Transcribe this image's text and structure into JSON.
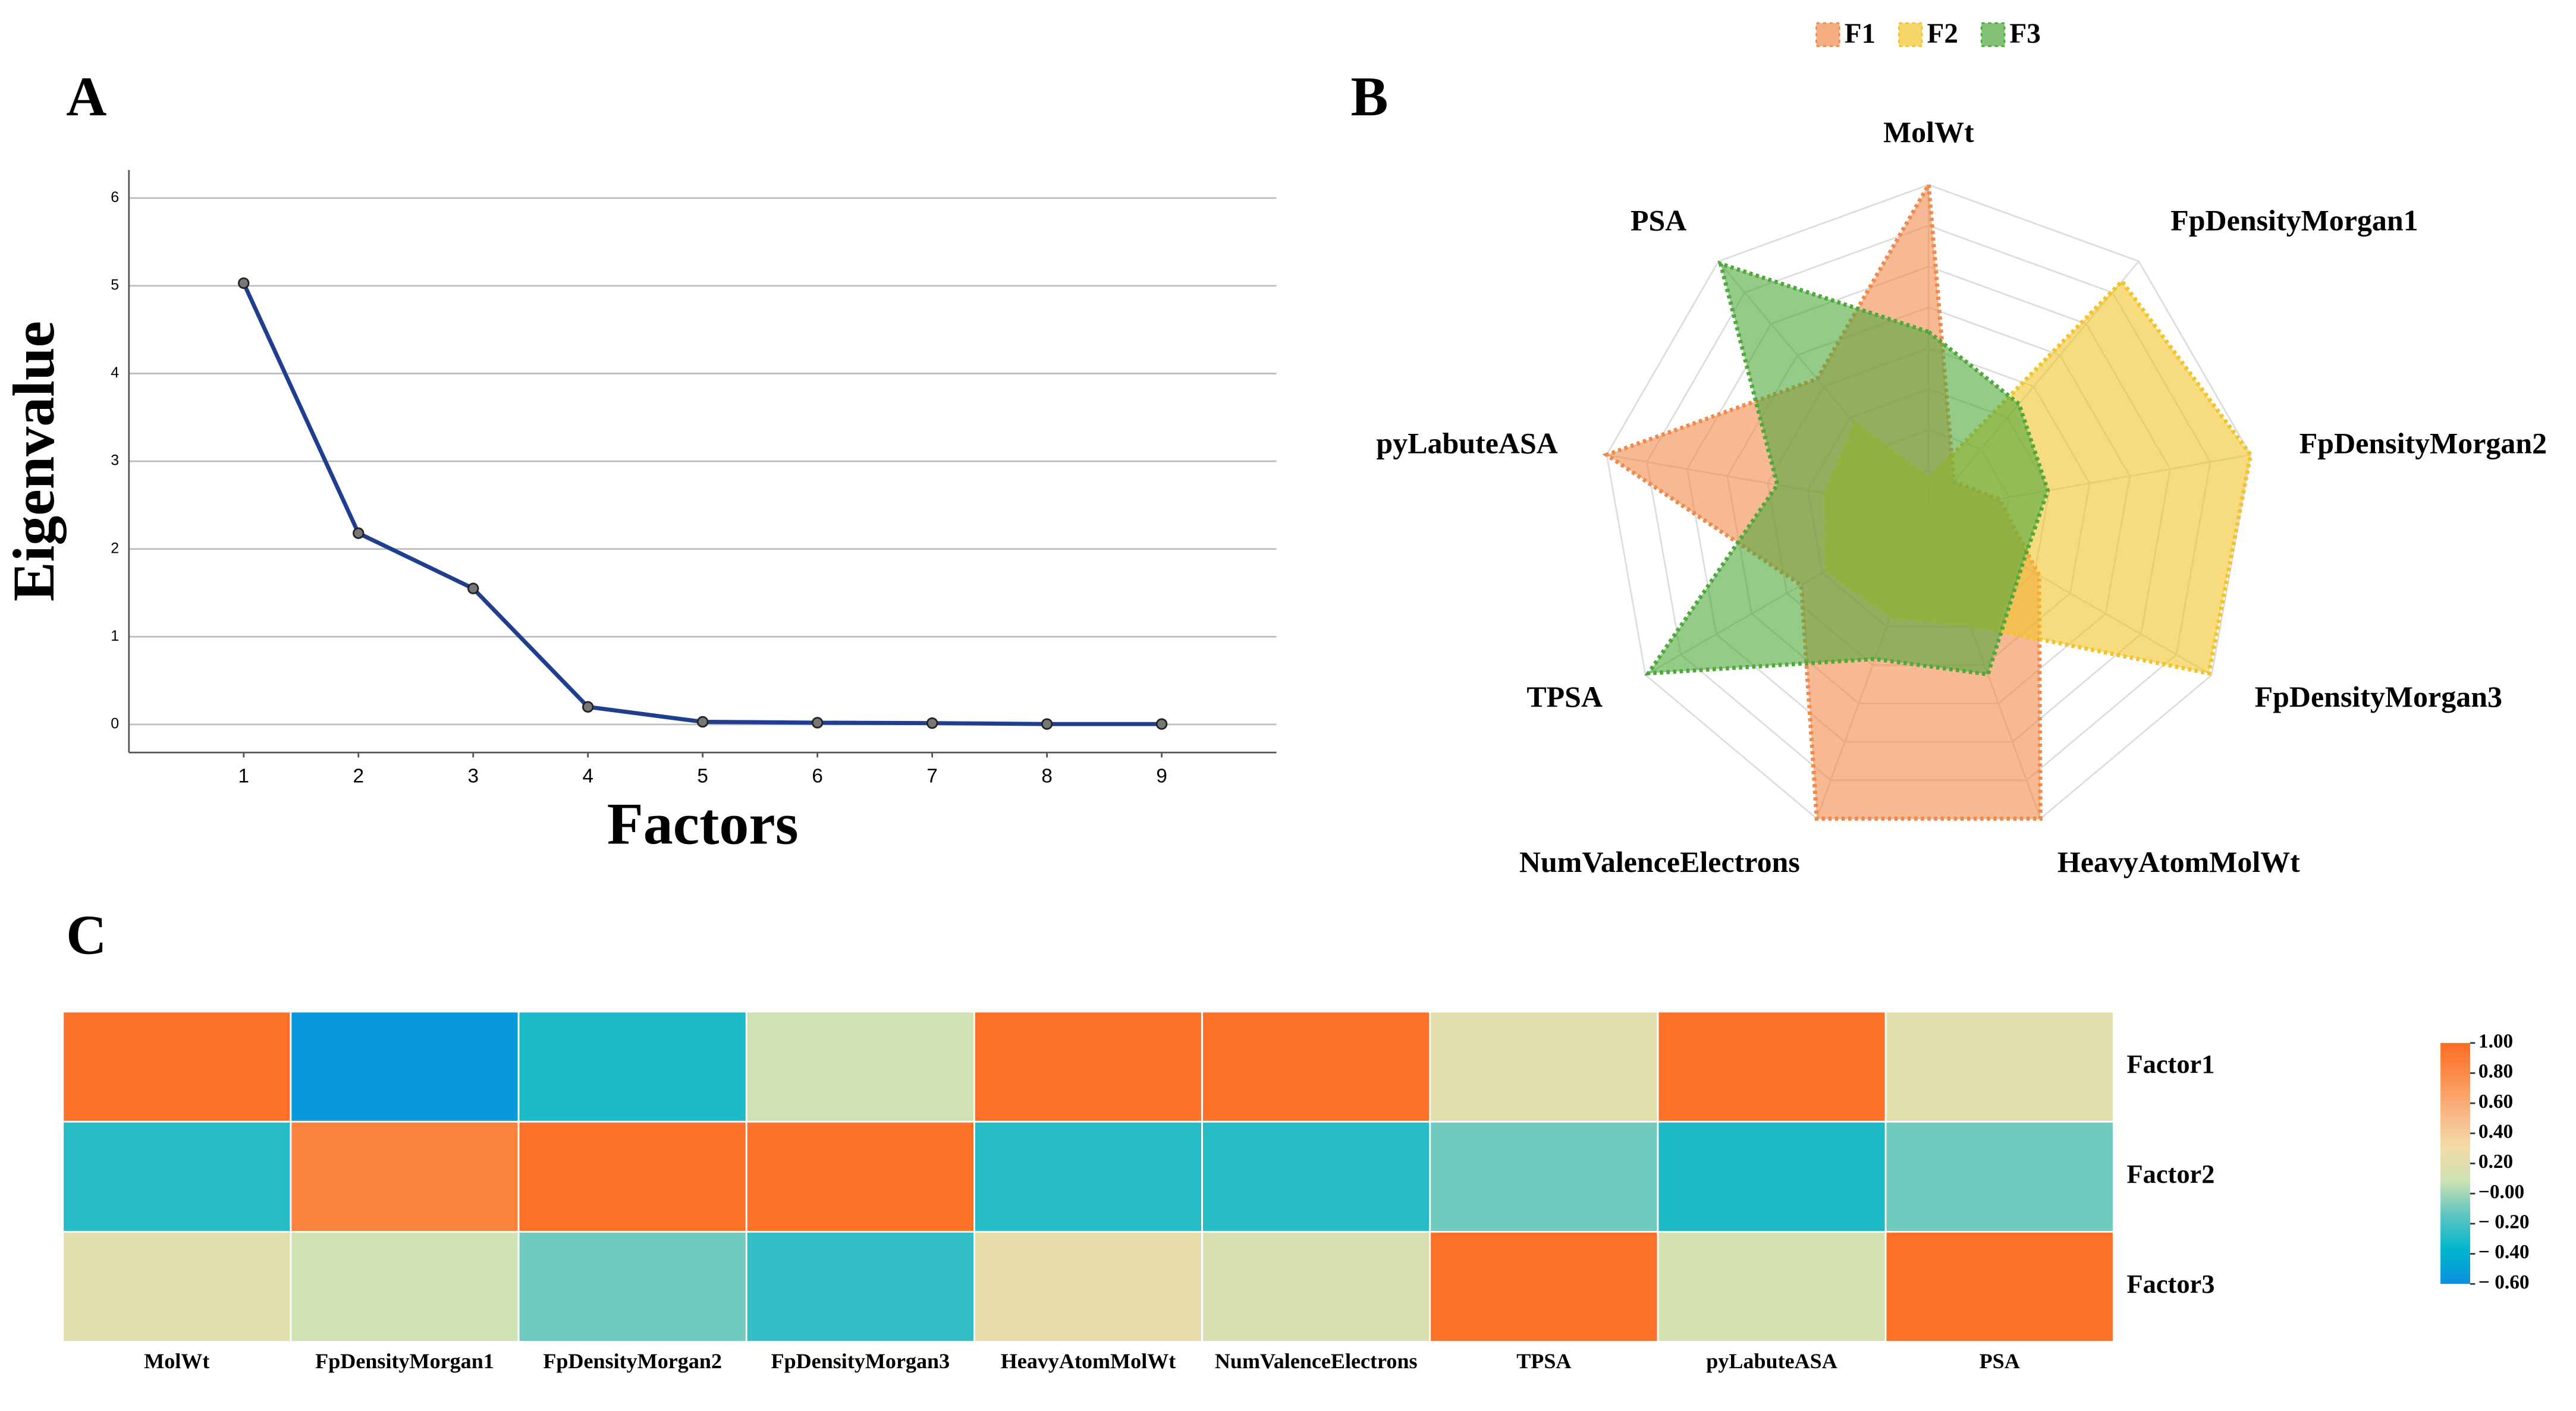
{
  "chart_data": [
    {
      "type": "line",
      "panel": "A",
      "xlabel": "Factors",
      "ylabel": "Eigenvalue",
      "x": [
        1,
        2,
        3,
        4,
        5,
        6,
        7,
        8,
        9
      ],
      "values": [
        5.03,
        2.18,
        1.55,
        0.2,
        0.03,
        0.02,
        0.015,
        0.005,
        0.005
      ],
      "color": "#1f3e8f",
      "xlim": [
        0,
        10
      ],
      "ylim": [
        -0.32,
        6.32
      ],
      "xticks": [
        1,
        2,
        3,
        4,
        5,
        6,
        7,
        8,
        9
      ],
      "yticks": [
        0,
        1,
        2,
        3,
        4,
        5,
        6
      ],
      "grid": true
    },
    {
      "type": "radar",
      "panel": "B",
      "categories": [
        "MolWt",
        "FpDensityMorgan1",
        "FpDensityMorgan2",
        "FpDensityMorgan3",
        "HeavyAtomMolWt",
        "NumValenceElectrons",
        "TPSA",
        "pyLabuteASA",
        "PSA"
      ],
      "rlim": [
        0,
        1
      ],
      "legend": "top",
      "series": [
        {
          "name": "F1",
          "color": "#f08a4b",
          "values": [
            1.0,
            0.12,
            0.22,
            0.39,
            1.0,
            1.0,
            0.45,
            1.0,
            0.53
          ]
        },
        {
          "name": "F2",
          "color": "#f2c42a",
          "values": [
            0.1,
            0.92,
            1.0,
            0.99,
            0.37,
            0.34,
            0.36,
            0.32,
            0.35
          ]
        },
        {
          "name": "F3",
          "color": "#4fa83a",
          "values": [
            0.55,
            0.43,
            0.37,
            0.33,
            0.53,
            0.48,
            0.99,
            0.47,
            0.99
          ]
        }
      ]
    },
    {
      "type": "heatmap",
      "panel": "C",
      "categories": [
        "MolWt",
        "FpDensityMorgan1",
        "FpDensityMorgan2",
        "FpDensityMorgan3",
        "HeavyAtomMolWt",
        "NumValenceElectrons",
        "TPSA",
        "pyLabuteASA",
        "PSA"
      ],
      "rows": [
        "Factor1",
        "Factor2",
        "Factor3"
      ],
      "values": [
        [
          0.97,
          -0.55,
          -0.3,
          0.1,
          0.97,
          0.97,
          0.2,
          0.97,
          0.2
        ],
        [
          -0.28,
          0.85,
          0.97,
          0.97,
          -0.28,
          -0.28,
          -0.1,
          -0.3,
          -0.1
        ],
        [
          0.2,
          0.1,
          -0.1,
          -0.25,
          0.25,
          0.15,
          0.98,
          0.13,
          0.98
        ]
      ],
      "clim": [
        -0.6,
        1.0
      ],
      "colors": [
        "#0a8fe0",
        "#00b6cc",
        "#5cc5c0",
        "#cde2b4",
        "#f3dba6",
        "#f8b583",
        "#fb8f4c",
        "#fd6d24"
      ],
      "cticks": [
        {
          "value": 1.0,
          "label": "1.00"
        },
        {
          "value": 0.8,
          "label": "0.80"
        },
        {
          "value": 0.6,
          "label": "0.60"
        },
        {
          "value": 0.4,
          "label": "0.40"
        },
        {
          "value": 0.2,
          "label": "0.20"
        },
        {
          "value": 0,
          "label": "−0.00"
        },
        {
          "value": -0.2,
          "label": "− 0.20"
        },
        {
          "value": -0.4,
          "label": "− 0.40"
        },
        {
          "value": -0.6,
          "label": "− 0.60"
        }
      ]
    }
  ]
}
